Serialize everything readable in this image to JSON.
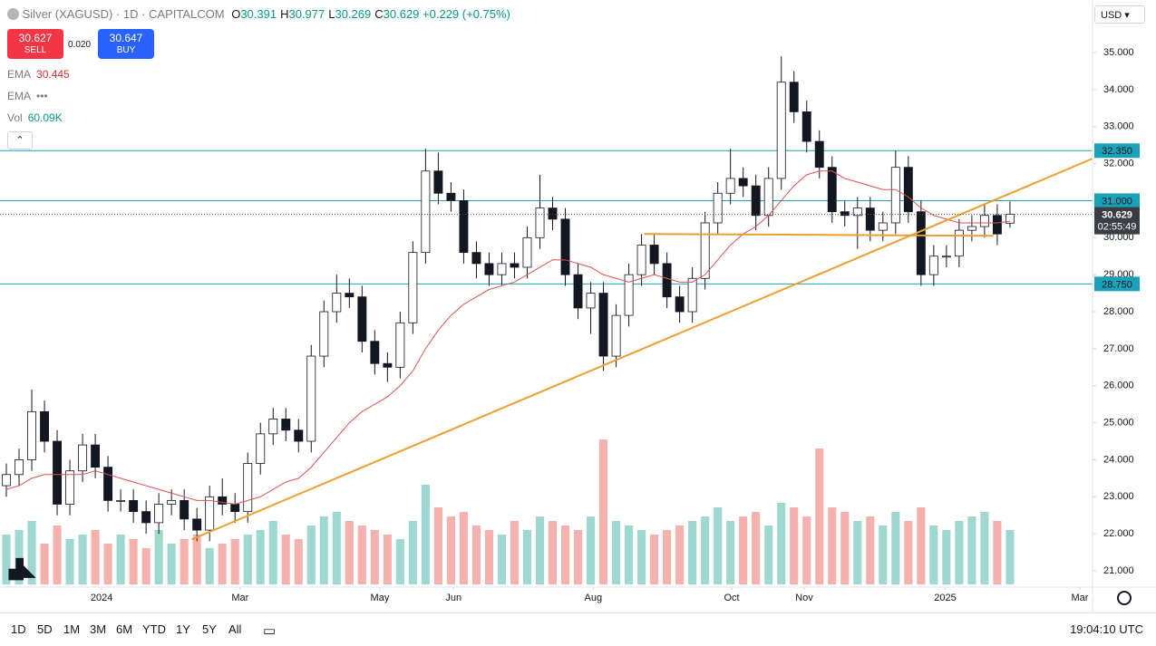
{
  "header": {
    "symbol": "Silver (XAGUSD) · 1D · CAPITALCOM",
    "ohlc": [
      {
        "key": "O",
        "value": "30.391"
      },
      {
        "key": "H",
        "value": "30.977"
      },
      {
        "key": "L",
        "value": "30.269"
      },
      {
        "key": "C",
        "value": "30.629"
      }
    ],
    "change": "+0.229 (+0.75%)",
    "currency": "USD"
  },
  "trade": {
    "sell_price": "30.627",
    "sell": "SELL",
    "spread": "0.020",
    "buy_price": "30.647",
    "buy": "BUY"
  },
  "indicators": [
    {
      "name": "EMA",
      "value": "30.445",
      "color": "#d32f2f"
    },
    {
      "name": "EMA",
      "value": "•••",
      "color": "#787b86"
    },
    {
      "name": "Vol",
      "value": "60.09K",
      "color": "#089981"
    }
  ],
  "chart_data": {
    "type": "candlestick",
    "open": [
      23.3,
      23.6,
      24.0,
      25.3,
      24.5,
      22.8,
      23.7,
      24.4,
      23.8,
      22.9,
      22.9,
      22.6,
      22.3,
      22.8,
      22.9,
      22.4,
      22.1,
      23.0,
      22.8,
      22.6,
      23.9,
      24.7,
      25.1,
      24.8,
      24.5,
      26.8,
      28.0,
      28.5,
      28.4,
      27.2,
      26.6,
      26.5,
      27.7,
      29.6,
      31.8,
      31.2,
      31.0,
      29.6,
      29.3,
      29.0,
      29.3,
      29.2,
      30.0,
      30.8,
      30.5,
      29.0,
      28.1,
      28.5,
      26.8,
      27.9,
      29.0,
      29.8,
      29.3,
      28.4,
      28.0,
      28.9,
      30.4,
      31.2,
      31.6,
      31.4,
      30.6,
      31.6,
      34.2,
      33.4,
      32.6,
      31.9,
      30.7,
      30.6,
      30.8,
      30.2,
      30.4,
      31.9,
      30.7,
      29.0,
      29.5,
      29.5,
      30.2,
      30.3,
      30.6,
      30.391
    ],
    "high": [
      23.9,
      24.3,
      25.9,
      25.6,
      24.8,
      24.0,
      24.7,
      24.7,
      24.1,
      23.2,
      23.2,
      22.9,
      23.1,
      23.2,
      23.2,
      22.7,
      23.3,
      23.5,
      23.1,
      24.2,
      25.0,
      25.4,
      25.4,
      25.1,
      27.1,
      28.3,
      29.0,
      28.9,
      28.7,
      27.5,
      26.9,
      28.0,
      29.9,
      32.4,
      32.3,
      31.5,
      31.3,
      29.9,
      29.6,
      29.6,
      29.6,
      30.3,
      31.7,
      31.1,
      30.8,
      29.3,
      28.8,
      28.8,
      28.2,
      29.3,
      30.1,
      30.1,
      29.6,
      28.7,
      29.2,
      30.7,
      31.5,
      32.4,
      31.9,
      31.7,
      31.9,
      34.9,
      34.5,
      33.7,
      32.9,
      32.2,
      31.0,
      31.1,
      31.1,
      30.7,
      32.35,
      32.2,
      31.0,
      29.8,
      29.8,
      30.5,
      30.6,
      30.9,
      30.9,
      30.977
    ],
    "low": [
      23.0,
      23.3,
      23.7,
      24.2,
      22.5,
      22.5,
      23.4,
      23.5,
      22.6,
      22.6,
      22.3,
      22.0,
      22.0,
      22.5,
      22.1,
      21.8,
      21.8,
      22.5,
      22.3,
      22.3,
      23.6,
      24.4,
      24.5,
      24.2,
      24.2,
      26.5,
      27.7,
      28.1,
      26.9,
      26.3,
      26.1,
      26.2,
      27.4,
      29.3,
      30.9,
      30.7,
      29.3,
      28.9,
      28.7,
      28.7,
      28.9,
      28.9,
      29.7,
      30.2,
      28.7,
      27.8,
      27.4,
      26.4,
      26.5,
      27.6,
      28.7,
      29.0,
      28.1,
      27.7,
      27.7,
      28.6,
      30.1,
      30.9,
      31.1,
      30.2,
      30.3,
      31.3,
      33.1,
      32.3,
      31.6,
      30.4,
      30.3,
      29.7,
      29.9,
      29.9,
      30.1,
      30.4,
      28.7,
      28.7,
      29.2,
      29.2,
      29.9,
      30.0,
      29.8,
      30.269
    ],
    "close": [
      23.6,
      24.0,
      25.3,
      24.5,
      22.8,
      23.7,
      24.4,
      23.8,
      22.9,
      22.9,
      22.6,
      22.3,
      22.8,
      22.9,
      22.4,
      22.1,
      23.0,
      22.8,
      22.6,
      23.9,
      24.7,
      25.1,
      24.8,
      24.5,
      26.8,
      28.0,
      28.5,
      28.4,
      27.2,
      26.6,
      26.5,
      27.7,
      29.6,
      31.8,
      31.2,
      31.0,
      29.6,
      29.3,
      29.0,
      29.3,
      29.2,
      30.0,
      30.8,
      30.5,
      29.0,
      28.1,
      28.5,
      26.8,
      27.9,
      29.0,
      29.8,
      29.3,
      28.4,
      28.0,
      28.9,
      30.4,
      31.2,
      31.6,
      31.4,
      30.6,
      31.6,
      34.2,
      33.4,
      32.6,
      31.9,
      30.7,
      30.6,
      30.8,
      30.2,
      30.4,
      31.9,
      30.7,
      29.0,
      29.5,
      29.5,
      30.2,
      30.3,
      30.6,
      30.1,
      30.629
    ],
    "volume": [
      55,
      60,
      70,
      45,
      65,
      50,
      55,
      60,
      45,
      55,
      50,
      40,
      60,
      45,
      50,
      55,
      40,
      45,
      50,
      55,
      60,
      70,
      55,
      50,
      65,
      75,
      80,
      70,
      65,
      60,
      55,
      50,
      70,
      110,
      85,
      75,
      80,
      65,
      60,
      55,
      70,
      60,
      75,
      70,
      65,
      60,
      75,
      160,
      70,
      65,
      60,
      55,
      60,
      65,
      70,
      75,
      85,
      70,
      75,
      80,
      65,
      90,
      85,
      75,
      150,
      85,
      80,
      70,
      75,
      65,
      80,
      70,
      85,
      65,
      60,
      70,
      75,
      80,
      70,
      60.09
    ],
    "up_color": "#ffffff",
    "down_color": "#131722",
    "volume_up_color": "#9fd8d0",
    "volume_down_color": "#f5b1ad",
    "ema": {
      "color": "#d9534f",
      "values": [
        23.2,
        23.3,
        23.5,
        23.6,
        23.6,
        23.6,
        23.6,
        23.7,
        23.6,
        23.5,
        23.4,
        23.3,
        23.2,
        23.1,
        23.0,
        22.9,
        22.9,
        22.85,
        22.8,
        22.9,
        23.0,
        23.2,
        23.4,
        23.5,
        23.8,
        24.2,
        24.6,
        25.0,
        25.3,
        25.5,
        25.7,
        26.0,
        26.4,
        27.0,
        27.5,
        27.9,
        28.2,
        28.4,
        28.6,
        28.7,
        28.8,
        29.0,
        29.2,
        29.4,
        29.4,
        29.3,
        29.2,
        29.0,
        28.9,
        28.8,
        28.9,
        29.0,
        28.9,
        28.8,
        28.8,
        29.0,
        29.4,
        29.8,
        30.1,
        30.3,
        30.6,
        31.0,
        31.4,
        31.7,
        31.8,
        31.8,
        31.6,
        31.5,
        31.4,
        31.3,
        31.3,
        31.1,
        30.8,
        30.6,
        30.5,
        30.4,
        30.4,
        30.4,
        30.4,
        30.445
      ]
    },
    "xlim": [
      -0.5,
      85.5
    ],
    "xticks": [
      {
        "value": 7.5,
        "label": "2024"
      },
      {
        "value": 18.4,
        "label": "Mar"
      },
      {
        "value": 29.4,
        "label": "May"
      },
      {
        "value": 35.2,
        "label": "Jun"
      },
      {
        "value": 46.2,
        "label": "Aug"
      },
      {
        "value": 57.1,
        "label": "Oct"
      },
      {
        "value": 62.8,
        "label": "Nov"
      },
      {
        "value": 73.9,
        "label": "2025"
      },
      {
        "value": 84.5,
        "label": "Mar"
      }
    ],
    "ylim": [
      20.56,
      36.42
    ],
    "yticks": [
      {
        "value": 21,
        "label": "21.000"
      },
      {
        "value": 22,
        "label": "22.000"
      },
      {
        "value": 23,
        "label": "23.000"
      },
      {
        "value": 24,
        "label": "24.000"
      },
      {
        "value": 25,
        "label": "25.000"
      },
      {
        "value": 26,
        "label": "26.000"
      },
      {
        "value": 27,
        "label": "27.000"
      },
      {
        "value": 28,
        "label": "28.000"
      },
      {
        "value": 29,
        "label": "29.000"
      },
      {
        "value": 30,
        "label": "30.000"
      },
      {
        "value": 32,
        "label": "32.000"
      },
      {
        "value": 33,
        "label": "33.000"
      },
      {
        "value": 34,
        "label": "34.000"
      },
      {
        "value": 35,
        "label": "35.000"
      }
    ],
    "hlines": [
      {
        "value": 32.35,
        "label": "32.350",
        "color": "#1ba1b8"
      },
      {
        "value": 31,
        "label": "31.000",
        "color": "#1ba1b8"
      },
      {
        "value": 28.75,
        "label": "28.750",
        "color": "#1ba1b8"
      }
    ],
    "last_price": {
      "value": 30.629,
      "label": "30.629",
      "countdown": "02:55:49"
    },
    "trendlines": [
      {
        "x": [
          14.6,
          85.6
        ],
        "y": [
          21.85,
          32.15
        ],
        "color": "#eaa030"
      },
      {
        "x": [
          50.2,
          77.7
        ],
        "y": [
          30.1,
          30.05
        ],
        "color": "#eaa030"
      }
    ]
  },
  "toolbar": {
    "ranges": [
      "1D",
      "5D",
      "1M",
      "3M",
      "6M",
      "YTD",
      "1Y",
      "5Y",
      "All"
    ],
    "clock": "19:04:10 UTC"
  }
}
